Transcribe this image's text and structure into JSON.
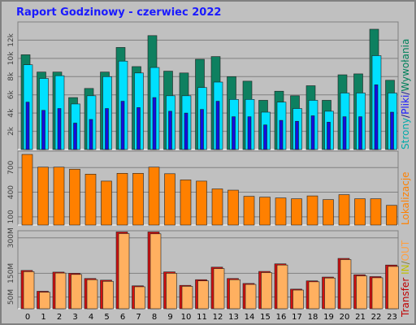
{
  "title": "Raport Godzinowy -  czerwiec 2022",
  "chart_data": [
    {
      "type": "bar",
      "categories": [
        "0",
        "1",
        "2",
        "3",
        "4",
        "5",
        "6",
        "7",
        "8",
        "9",
        "10",
        "11",
        "12",
        "13",
        "14",
        "15",
        "16",
        "17",
        "18",
        "19",
        "20",
        "21",
        "22",
        "23"
      ],
      "ylim": [
        0,
        14000
      ],
      "ytick_labels": [
        "2k",
        "4k",
        "6k",
        "8k",
        "10k",
        "12k"
      ],
      "legend": [
        {
          "text": "Strony",
          "color": "#00aaaa"
        },
        {
          "text": "/",
          "color": "#1a1a8c"
        },
        {
          "text": "Pliki",
          "color": "#1a1aff"
        },
        {
          "text": "/",
          "color": "#1a1a8c"
        },
        {
          "text": "Wywołania",
          "color": "#00805a"
        }
      ],
      "series": [
        {
          "name": "Wywołania",
          "color": "#0e8060",
          "values": [
            10400,
            8500,
            8500,
            5700,
            6700,
            8500,
            11200,
            9100,
            12500,
            8600,
            8400,
            9900,
            10200,
            8000,
            7500,
            5400,
            6400,
            5900,
            7000,
            5400,
            8200,
            8300,
            13200,
            7600
          ]
        },
        {
          "name": "Pliki",
          "color": "#00e0ff",
          "values": [
            9300,
            7800,
            8100,
            5000,
            5900,
            8000,
            9700,
            8400,
            9000,
            5900,
            5900,
            6800,
            7400,
            5500,
            5500,
            4100,
            5200,
            4500,
            5400,
            4200,
            6200,
            6200,
            10300,
            6200
          ]
        },
        {
          "name": "Strony",
          "color": "#1010e0",
          "values": [
            5200,
            4300,
            4500,
            2900,
            3300,
            4500,
            5300,
            4600,
            5700,
            4200,
            4000,
            4400,
            5300,
            3600,
            3600,
            2700,
            3200,
            3100,
            3700,
            3000,
            3600,
            3600,
            7100,
            4100
          ]
        }
      ]
    },
    {
      "type": "bar",
      "categories": [
        "0",
        "1",
        "2",
        "3",
        "4",
        "5",
        "6",
        "7",
        "8",
        "9",
        "10",
        "11",
        "12",
        "13",
        "14",
        "15",
        "16",
        "17",
        "18",
        "19",
        "20",
        "21",
        "22",
        "23"
      ],
      "ylim": [
        0,
        900
      ],
      "ytick_labels": [
        "100",
        "400",
        "700"
      ],
      "legend": [
        {
          "text": "Lokalizacje",
          "color": "#ff8000"
        }
      ],
      "series": [
        {
          "name": "Lokalizacje",
          "color": "#ff8000",
          "values": [
            860,
            705,
            705,
            680,
            620,
            535,
            630,
            630,
            705,
            625,
            550,
            535,
            440,
            425,
            350,
            340,
            330,
            320,
            355,
            310,
            370,
            320,
            320,
            240
          ]
        }
      ]
    },
    {
      "type": "bar",
      "categories": [
        "0",
        "1",
        "2",
        "3",
        "4",
        "5",
        "6",
        "7",
        "8",
        "9",
        "10",
        "11",
        "12",
        "13",
        "14",
        "15",
        "16",
        "17",
        "18",
        "19",
        "20",
        "21",
        "22",
        "23"
      ],
      "ylim": [
        0,
        330
      ],
      "ytick_labels": [
        "50M",
        "150M",
        "300M"
      ],
      "legend": [
        {
          "text": "Transfer",
          "color": "#c00000"
        },
        {
          "text": "IN",
          "color": "#c0c000"
        },
        {
          "text": "/",
          "color": "#808040"
        },
        {
          "text": "OUT",
          "color": "#ffa040"
        }
      ],
      "series": [
        {
          "name": "Transfer",
          "color": "#d01010",
          "values": [
            162,
            74,
            155,
            150,
            128,
            121,
            325,
            97,
            325,
            156,
            99,
            123,
            176,
            128,
            107,
            158,
            190,
            83,
            118,
            134,
            213,
            144,
            136,
            185
          ]
        },
        {
          "name": "OUT",
          "color": "#ffb060",
          "values": [
            157,
            70,
            151,
            145,
            123,
            116,
            318,
            93,
            317,
            150,
            95,
            118,
            170,
            123,
            103,
            153,
            185,
            79,
            114,
            130,
            208,
            139,
            131,
            179
          ]
        }
      ]
    }
  ]
}
